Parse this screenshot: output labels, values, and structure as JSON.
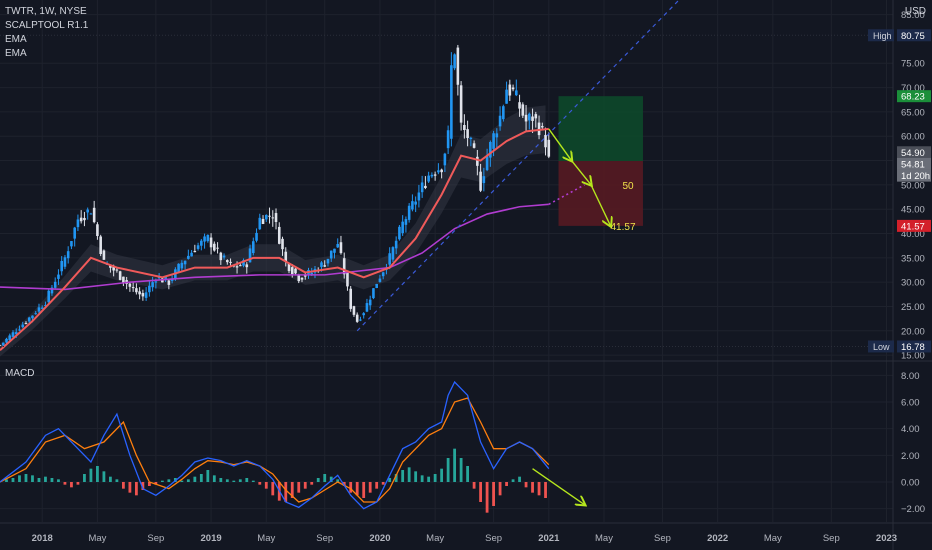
{
  "header": {
    "symbol": "TWTR, 1W, NYSE",
    "indicators": [
      "SCALPTOOL R1.1",
      "EMA",
      "EMA"
    ],
    "currency": "USD"
  },
  "macd_label": "MACD",
  "colors": {
    "bg": "#131722",
    "grid": "#1e222d",
    "up": "#2196f3",
    "down": "#e0e3eb",
    "ema_fast": "#f05a5a",
    "ema_slow": "#b03cd0",
    "band": "#9598a1",
    "trend": "#3a5ad8",
    "arrow": "#b5e61d",
    "macd_line": "#2962ff",
    "signal_line": "#ff7f0e",
    "hist_pos": "#26a69a",
    "hist_neg": "#ef5350",
    "profit_zone": "#0d4b2a",
    "loss_zone": "#5a1a22"
  },
  "chart_data": [
    {
      "type": "candlestick",
      "title": "TWTR, 1W, NYSE",
      "x_ticks": [
        "2018",
        "May",
        "Sep",
        "2019",
        "May",
        "Sep",
        "2020",
        "May",
        "Sep",
        "2021",
        "May",
        "Sep",
        "2022",
        "May",
        "Sep",
        "2023"
      ],
      "x_range": [
        "2017-10",
        "2023-02"
      ],
      "y_ticks": [
        15,
        20,
        25,
        30,
        35,
        40,
        45,
        50,
        55,
        60,
        65,
        70,
        75,
        85
      ],
      "ylim": [
        14,
        88
      ],
      "price_labels": [
        {
          "text": "High",
          "value": "80.75",
          "price": 80.75,
          "color": "#1c2a4a"
        },
        {
          "text": "",
          "value": "68.23",
          "price": 68.23,
          "color": "#1b8f3a"
        },
        {
          "text": "",
          "value": "54.90",
          "price": 56.7,
          "color": "#4a4e58"
        },
        {
          "text": "",
          "value": "54.81",
          "price": 54.3,
          "color": "#6a6e78"
        },
        {
          "text": "",
          "value": "1d 20h",
          "price": 51.9,
          "color": "#6a6e78"
        },
        {
          "text": "",
          "value": "41.57",
          "price": 41.57,
          "color": "#d3202a"
        },
        {
          "text": "Low",
          "value": "16.78",
          "price": 16.78,
          "color": "#1c2a4a"
        }
      ],
      "zone_labels": [
        {
          "text": "50",
          "price": 50
        },
        {
          "text": "41.57",
          "price": 41.57
        }
      ],
      "price_path": [
        [
          0,
          17
        ],
        [
          8,
          22
        ],
        [
          14,
          26
        ],
        [
          20,
          35
        ],
        [
          24,
          43
        ],
        [
          28,
          45
        ],
        [
          32,
          34
        ],
        [
          36,
          32
        ],
        [
          40,
          29
        ],
        [
          44,
          27
        ],
        [
          48,
          31
        ],
        [
          52,
          30
        ],
        [
          56,
          34
        ],
        [
          60,
          37
        ],
        [
          64,
          39
        ],
        [
          68,
          35
        ],
        [
          72,
          33
        ],
        [
          76,
          34
        ],
        [
          80,
          43
        ],
        [
          84,
          44
        ],
        [
          88,
          34
        ],
        [
          92,
          31
        ],
        [
          96,
          32
        ],
        [
          100,
          34
        ],
        [
          104,
          38
        ],
        [
          106,
          32
        ],
        [
          108,
          25
        ],
        [
          110,
          22
        ],
        [
          112,
          24
        ],
        [
          116,
          30
        ],
        [
          120,
          35
        ],
        [
          124,
          42
        ],
        [
          128,
          47
        ],
        [
          132,
          52
        ],
        [
          136,
          54
        ],
        [
          138,
          60
        ],
        [
          139,
          74
        ],
        [
          140,
          78
        ],
        [
          142,
          62
        ],
        [
          144,
          60
        ],
        [
          146,
          56
        ],
        [
          148,
          50
        ],
        [
          150,
          56
        ],
        [
          152,
          60
        ],
        [
          154,
          64
        ],
        [
          156,
          70
        ],
        [
          158,
          69
        ],
        [
          160,
          66
        ],
        [
          162,
          63
        ],
        [
          164,
          64
        ],
        [
          166,
          62
        ],
        [
          168,
          59
        ],
        [
          169,
          54.9
        ]
      ],
      "ema_fast": [
        [
          0,
          16
        ],
        [
          10,
          22
        ],
        [
          20,
          29
        ],
        [
          28,
          35
        ],
        [
          36,
          33
        ],
        [
          50,
          31
        ],
        [
          60,
          33
        ],
        [
          70,
          33
        ],
        [
          78,
          35
        ],
        [
          86,
          35
        ],
        [
          94,
          32
        ],
        [
          104,
          33
        ],
        [
          112,
          31
        ],
        [
          120,
          33
        ],
        [
          128,
          39
        ],
        [
          136,
          48
        ],
        [
          142,
          56
        ],
        [
          148,
          55
        ],
        [
          156,
          59
        ],
        [
          162,
          61
        ],
        [
          169,
          61.5
        ]
      ],
      "ema_slow": [
        [
          0,
          29
        ],
        [
          20,
          28.5
        ],
        [
          40,
          30
        ],
        [
          60,
          31
        ],
        [
          80,
          31.5
        ],
        [
          100,
          31.5
        ],
        [
          120,
          33
        ],
        [
          130,
          36
        ],
        [
          140,
          41
        ],
        [
          150,
          44
        ],
        [
          160,
          45.5
        ],
        [
          169,
          46
        ]
      ],
      "ema_slow_projection": [
        [
          169,
          46
        ],
        [
          180,
          50
        ]
      ],
      "trend_line": [
        [
          110,
          20
        ],
        [
          212,
          90
        ]
      ],
      "projection_arrows": [
        [
          [
            169,
            61.5
          ],
          [
            176,
            55
          ]
        ],
        [
          [
            176,
            55
          ],
          [
            182,
            50
          ]
        ],
        [
          [
            182,
            50
          ],
          [
            188,
            41.6
          ]
        ]
      ],
      "zones": {
        "profit": {
          "x": [
            172,
            198
          ],
          "y": [
            54.9,
            68.23
          ]
        },
        "loss": {
          "x": [
            172,
            198
          ],
          "y": [
            41.57,
            54.9
          ]
        }
      }
    },
    {
      "type": "macd",
      "title": "MACD",
      "y_ticks": [
        8,
        6,
        4,
        2,
        0,
        -2
      ],
      "ylim": [
        -3,
        9
      ],
      "macd": [
        [
          0,
          0
        ],
        [
          8,
          1.5
        ],
        [
          14,
          3.5
        ],
        [
          18,
          4
        ],
        [
          24,
          2.5
        ],
        [
          28,
          1.5
        ],
        [
          32,
          3.5
        ],
        [
          36,
          5.1
        ],
        [
          40,
          2
        ],
        [
          44,
          -0.5
        ],
        [
          48,
          -1
        ],
        [
          52,
          -0.3
        ],
        [
          56,
          0.5
        ],
        [
          60,
          1.5
        ],
        [
          64,
          1.8
        ],
        [
          68,
          1.6
        ],
        [
          72,
          1.2
        ],
        [
          76,
          1.6
        ],
        [
          80,
          1.2
        ],
        [
          84,
          0.2
        ],
        [
          88,
          -1.5
        ],
        [
          92,
          -1.9
        ],
        [
          96,
          -1.2
        ],
        [
          100,
          -0.3
        ],
        [
          104,
          0.5
        ],
        [
          108,
          -1
        ],
        [
          112,
          -2
        ],
        [
          116,
          -1.5
        ],
        [
          120,
          0.5
        ],
        [
          124,
          2.5
        ],
        [
          128,
          3
        ],
        [
          132,
          4
        ],
        [
          136,
          4.5
        ],
        [
          138,
          6.5
        ],
        [
          140,
          7.5
        ],
        [
          144,
          6.5
        ],
        [
          148,
          3
        ],
        [
          152,
          1
        ],
        [
          156,
          2.5
        ],
        [
          160,
          3
        ],
        [
          164,
          2.5
        ],
        [
          169,
          1
        ]
      ],
      "signal": [
        [
          0,
          0
        ],
        [
          8,
          1
        ],
        [
          14,
          3
        ],
        [
          20,
          3.5
        ],
        [
          26,
          2.5
        ],
        [
          32,
          3
        ],
        [
          38,
          4.5
        ],
        [
          42,
          2
        ],
        [
          46,
          0
        ],
        [
          52,
          -0.5
        ],
        [
          56,
          0.2
        ],
        [
          60,
          1
        ],
        [
          64,
          1.6
        ],
        [
          68,
          1.5
        ],
        [
          72,
          1.3
        ],
        [
          76,
          1.5
        ],
        [
          80,
          1.2
        ],
        [
          84,
          0.6
        ],
        [
          88,
          -0.6
        ],
        [
          92,
          -1.5
        ],
        [
          96,
          -1.2
        ],
        [
          100,
          -0.6
        ],
        [
          104,
          0
        ],
        [
          108,
          -0.5
        ],
        [
          112,
          -1.5
        ],
        [
          116,
          -1.5
        ],
        [
          120,
          -0.5
        ],
        [
          124,
          1.5
        ],
        [
          128,
          2.5
        ],
        [
          132,
          3.5
        ],
        [
          136,
          4
        ],
        [
          140,
          6
        ],
        [
          144,
          6.3
        ],
        [
          148,
          4.5
        ],
        [
          152,
          2.5
        ],
        [
          156,
          2.5
        ],
        [
          160,
          3
        ],
        [
          164,
          2.5
        ],
        [
          169,
          1.3
        ]
      ],
      "histogram": [
        [
          2,
          0.2
        ],
        [
          4,
          0.3
        ],
        [
          6,
          0.5
        ],
        [
          8,
          0.6
        ],
        [
          10,
          0.5
        ],
        [
          12,
          0.3
        ],
        [
          14,
          0.4
        ],
        [
          16,
          0.3
        ],
        [
          18,
          0.2
        ],
        [
          20,
          -0.2
        ],
        [
          22,
          -0.4
        ],
        [
          24,
          -0.2
        ],
        [
          26,
          0.6
        ],
        [
          28,
          1
        ],
        [
          30,
          1.2
        ],
        [
          32,
          0.8
        ],
        [
          34,
          0.4
        ],
        [
          36,
          0.2
        ],
        [
          38,
          -0.5
        ],
        [
          40,
          -0.8
        ],
        [
          42,
          -1
        ],
        [
          44,
          -0.6
        ],
        [
          46,
          -0.3
        ],
        [
          48,
          -0.2
        ],
        [
          50,
          0.1
        ],
        [
          52,
          0.2
        ],
        [
          54,
          0.3
        ],
        [
          56,
          0.1
        ],
        [
          58,
          0.2
        ],
        [
          60,
          0.4
        ],
        [
          62,
          0.6
        ],
        [
          64,
          0.9
        ],
        [
          66,
          0.5
        ],
        [
          68,
          0.3
        ],
        [
          70,
          0.2
        ],
        [
          72,
          0.1
        ],
        [
          74,
          0.2
        ],
        [
          76,
          0.3
        ],
        [
          78,
          0.1
        ],
        [
          80,
          -0.2
        ],
        [
          82,
          -0.5
        ],
        [
          84,
          -1
        ],
        [
          86,
          -1.4
        ],
        [
          88,
          -1.5
        ],
        [
          90,
          -1.2
        ],
        [
          92,
          -0.8
        ],
        [
          94,
          -0.5
        ],
        [
          96,
          -0.2
        ],
        [
          98,
          0.3
        ],
        [
          100,
          0.6
        ],
        [
          102,
          0.4
        ],
        [
          104,
          0.2
        ],
        [
          106,
          -0.3
        ],
        [
          108,
          -0.8
        ],
        [
          110,
          -1
        ],
        [
          112,
          -1.2
        ],
        [
          114,
          -0.8
        ],
        [
          116,
          -0.5
        ],
        [
          118,
          -0.2
        ],
        [
          120,
          0.3
        ],
        [
          122,
          0.6
        ],
        [
          124,
          0.9
        ],
        [
          126,
          1.1
        ],
        [
          128,
          0.8
        ],
        [
          130,
          0.5
        ],
        [
          132,
          0.4
        ],
        [
          134,
          0.6
        ],
        [
          136,
          1
        ],
        [
          138,
          1.8
        ],
        [
          140,
          2.5
        ],
        [
          142,
          1.8
        ],
        [
          144,
          1.2
        ],
        [
          146,
          -0.5
        ],
        [
          148,
          -1.5
        ],
        [
          150,
          -2.3
        ],
        [
          152,
          -1.8
        ],
        [
          154,
          -1
        ],
        [
          156,
          -0.3
        ],
        [
          158,
          0.2
        ],
        [
          160,
          0.4
        ],
        [
          162,
          -0.4
        ],
        [
          164,
          -0.8
        ],
        [
          166,
          -1
        ],
        [
          168,
          -1.2
        ]
      ],
      "projection_arrows": [
        [
          [
            164,
            1
          ],
          [
            180,
            -1.7
          ]
        ]
      ]
    }
  ]
}
